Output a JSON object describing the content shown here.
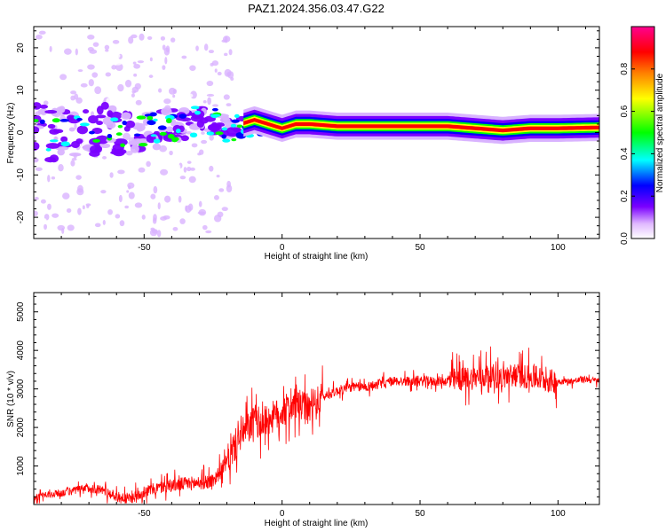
{
  "figure": {
    "title": "PAZ1.2024.356.03.47.G22"
  },
  "chart_data": [
    {
      "type": "heatmap",
      "xlabel": "Height of straight line (km)",
      "ylabel": "Frequency (Hz)",
      "xlim": [
        -90,
        115
      ],
      "ylim": [
        -25,
        25
      ],
      "xticks": [
        -50,
        0,
        50,
        100
      ],
      "yticks": [
        -20,
        -10,
        0,
        10,
        20
      ],
      "colorbar": {
        "label": "Normalized spectral amplitude",
        "range": [
          0,
          1
        ],
        "ticks": [
          0.0,
          0.2,
          0.4,
          0.6,
          0.8
        ],
        "colors": [
          "#ffffff",
          "#d9b3ff",
          "#7a00ff",
          "#0000ff",
          "#00ffff",
          "#00ff00",
          "#ffff00",
          "#ff8000",
          "#ff0000",
          "#ff00a0"
        ]
      },
      "ridge": {
        "description_points_x": [
          -88,
          -70,
          -55,
          -45,
          -35,
          -28,
          -20,
          -15,
          -10,
          -5,
          0,
          5,
          10,
          20,
          40,
          60,
          70,
          80,
          90,
          100,
          115
        ],
        "description_points_y": [
          -1,
          1,
          0,
          1,
          2,
          3,
          1,
          2,
          3,
          2,
          1,
          2,
          2,
          1.5,
          1.5,
          1.5,
          1,
          0.5,
          1,
          1,
          1.2
        ]
      }
    },
    {
      "type": "line",
      "xlabel": "Height of straight line (km)",
      "ylabel": "SNR (10 * v/v)",
      "xlim": [
        -90,
        115
      ],
      "ylim": [
        0,
        5500
      ],
      "xticks": [
        -50,
        0,
        50,
        100
      ],
      "yticks": [
        1000,
        2000,
        3000,
        4000,
        5000
      ],
      "series": [
        {
          "color": "#ff0000",
          "x": [
            -90,
            -80,
            -70,
            -65,
            -60,
            -55,
            -50,
            -45,
            -40,
            -35,
            -30,
            -25,
            -22,
            -20,
            -18,
            -15,
            -12,
            -10,
            -8,
            -5,
            0,
            5,
            10,
            15,
            20,
            25,
            30,
            40,
            50,
            60,
            65,
            70,
            75,
            80,
            85,
            90,
            95,
            97,
            100,
            105,
            110,
            115
          ],
          "y": [
            180,
            300,
            430,
            380,
            200,
            150,
            330,
            430,
            500,
            540,
            560,
            620,
            900,
            1100,
            1400,
            1800,
            2000,
            2200,
            2100,
            2200,
            2400,
            2600,
            2450,
            2800,
            2950,
            3050,
            3050,
            3200,
            3200,
            3200,
            3250,
            3300,
            3350,
            3300,
            3350,
            3300,
            3250,
            3200,
            3200,
            3200,
            3250,
            3200
          ]
        }
      ]
    }
  ]
}
